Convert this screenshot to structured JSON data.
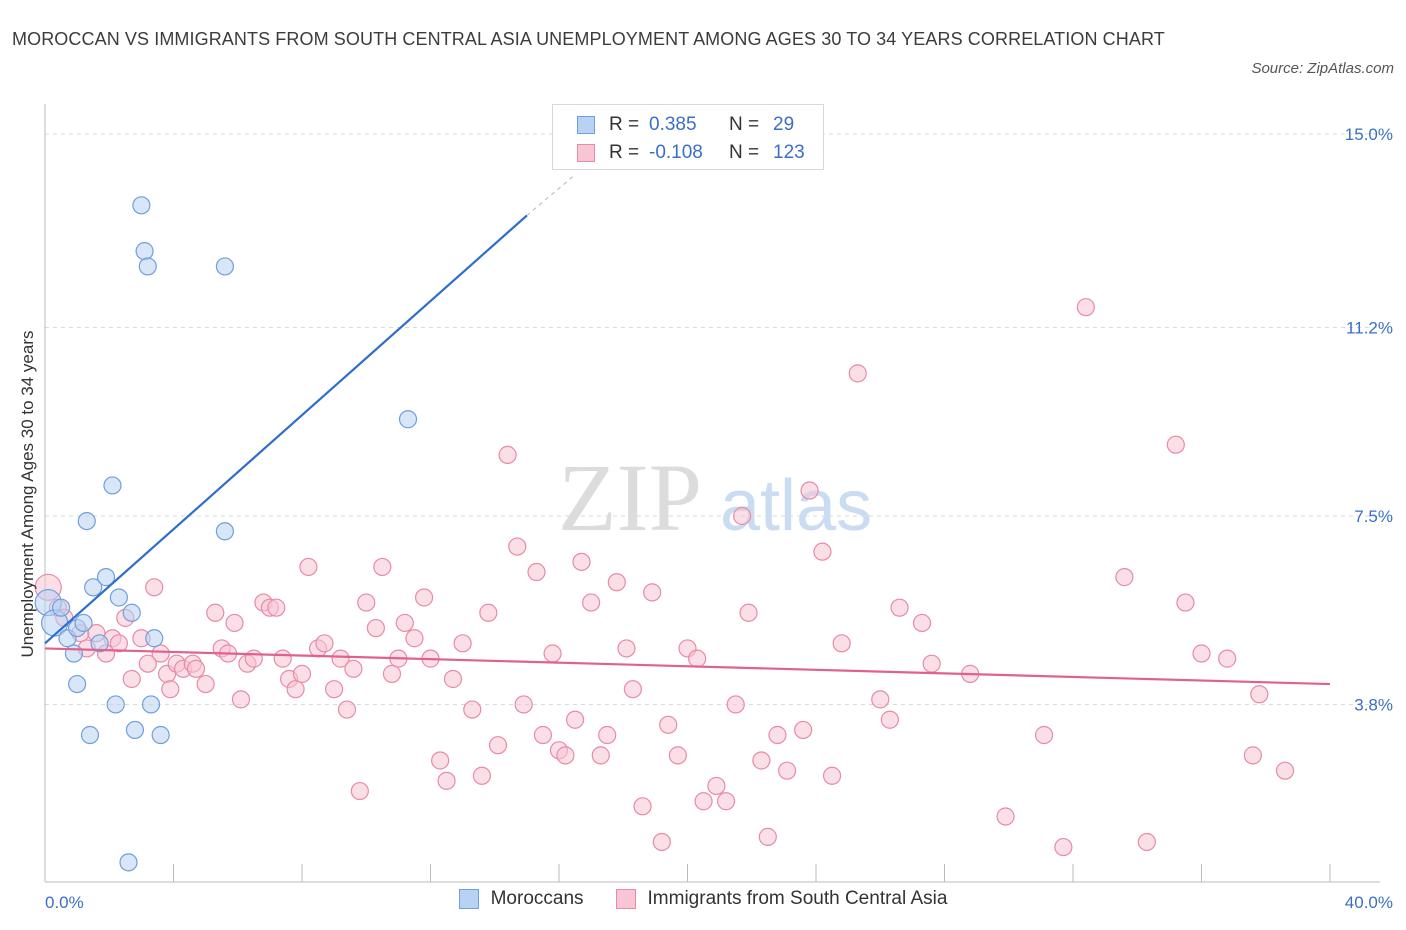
{
  "header": {
    "title": "MOROCCAN VS IMMIGRANTS FROM SOUTH CENTRAL ASIA UNEMPLOYMENT AMONG AGES 30 TO 34 YEARS CORRELATION CHART",
    "source": "Source: ZipAtlas.com"
  },
  "legend": {
    "rows": [
      {
        "r_label": "R =",
        "r_value": "0.385",
        "n_label": "N =",
        "n_value": "29"
      },
      {
        "r_label": "R =",
        "r_value": "-0.108",
        "n_label": "N =",
        "n_value": "123"
      }
    ],
    "bottom": [
      "Moroccans",
      "Immigrants from South Central Asia"
    ]
  },
  "colors": {
    "blue_fill": "#b8d2f3",
    "blue_stroke": "#6f9fdc",
    "blue_line": "#2f6fcc",
    "pink_fill": "#f7c5d4",
    "pink_stroke": "#e88aa8",
    "pink_line": "#e0618e",
    "grid": "#d9d9d9",
    "axis_text": "#3b6fc5"
  },
  "chart_data": {
    "type": "scatter",
    "title": "MOROCCAN VS IMMIGRANTS FROM SOUTH CENTRAL ASIA UNEMPLOYMENT AMONG AGES 30 TO 34 YEARS CORRELATION CHART",
    "xlabel": "",
    "ylabel": "Unemployment Among Ages 30 to 34 years",
    "xlim": [
      0,
      40
    ],
    "ylim": [
      0,
      15
    ],
    "x_tick_labels": [
      "0.0%",
      "40.0%"
    ],
    "y_ticks": [
      3.8,
      7.5,
      11.2,
      15.0
    ],
    "y_tick_labels": [
      "3.8%",
      "7.5%",
      "11.2%",
      "15.0%"
    ],
    "watermark": "ZIPatlas",
    "series": [
      {
        "name": "Moroccans",
        "r": 0.385,
        "n": 29,
        "trend": {
          "x": [
            0.0,
            15.0
          ],
          "y": [
            5.0,
            13.4
          ]
        },
        "trend_dashed": {
          "x": [
            15.0,
            16.5
          ],
          "y": [
            13.4,
            14.2
          ]
        },
        "points": [
          {
            "x": 0.1,
            "y": 5.8,
            "big": true
          },
          {
            "x": 0.3,
            "y": 5.4,
            "big": true
          },
          {
            "x": 0.5,
            "y": 5.7
          },
          {
            "x": 0.7,
            "y": 5.1
          },
          {
            "x": 0.9,
            "y": 4.8
          },
          {
            "x": 1.0,
            "y": 5.3
          },
          {
            "x": 1.0,
            "y": 4.2
          },
          {
            "x": 1.2,
            "y": 5.4
          },
          {
            "x": 1.3,
            "y": 7.4
          },
          {
            "x": 1.4,
            "y": 3.2
          },
          {
            "x": 1.5,
            "y": 6.1
          },
          {
            "x": 1.7,
            "y": 5.0
          },
          {
            "x": 1.9,
            "y": 6.3
          },
          {
            "x": 2.1,
            "y": 8.1
          },
          {
            "x": 2.2,
            "y": 3.8
          },
          {
            "x": 2.3,
            "y": 5.9
          },
          {
            "x": 2.6,
            "y": 0.7
          },
          {
            "x": 2.7,
            "y": 5.6
          },
          {
            "x": 2.8,
            "y": 3.3
          },
          {
            "x": 3.0,
            "y": 13.6
          },
          {
            "x": 3.1,
            "y": 12.7
          },
          {
            "x": 3.2,
            "y": 12.4
          },
          {
            "x": 3.3,
            "y": 3.8
          },
          {
            "x": 3.4,
            "y": 5.1
          },
          {
            "x": 3.6,
            "y": 3.2
          },
          {
            "x": 5.6,
            "y": 7.2
          },
          {
            "x": 5.6,
            "y": 12.4
          },
          {
            "x": 11.3,
            "y": 9.4
          }
        ]
      },
      {
        "name": "Immigrants from South Central Asia",
        "r": -0.108,
        "n": 123,
        "trend": {
          "x": [
            0.0,
            40.0
          ],
          "y": [
            4.9,
            4.2
          ]
        },
        "points": [
          {
            "x": 0.1,
            "y": 6.1,
            "big": true
          },
          {
            "x": 0.4,
            "y": 5.7
          },
          {
            "x": 0.6,
            "y": 5.5
          },
          {
            "x": 1.1,
            "y": 5.2
          },
          {
            "x": 1.3,
            "y": 4.9
          },
          {
            "x": 1.6,
            "y": 5.2
          },
          {
            "x": 1.9,
            "y": 4.8
          },
          {
            "x": 2.1,
            "y": 5.1
          },
          {
            "x": 2.3,
            "y": 5.0
          },
          {
            "x": 2.5,
            "y": 5.5
          },
          {
            "x": 2.7,
            "y": 4.3
          },
          {
            "x": 3.0,
            "y": 5.1
          },
          {
            "x": 3.2,
            "y": 4.6
          },
          {
            "x": 3.4,
            "y": 6.1
          },
          {
            "x": 3.6,
            "y": 4.8
          },
          {
            "x": 3.8,
            "y": 4.4
          },
          {
            "x": 3.9,
            "y": 4.1
          },
          {
            "x": 4.1,
            "y": 4.6
          },
          {
            "x": 4.3,
            "y": 4.5
          },
          {
            "x": 4.6,
            "y": 4.6
          },
          {
            "x": 4.7,
            "y": 4.5
          },
          {
            "x": 5.0,
            "y": 4.2
          },
          {
            "x": 5.3,
            "y": 5.6
          },
          {
            "x": 5.5,
            "y": 4.9
          },
          {
            "x": 5.7,
            "y": 4.8
          },
          {
            "x": 5.9,
            "y": 5.4
          },
          {
            "x": 6.1,
            "y": 3.9
          },
          {
            "x": 6.3,
            "y": 4.6
          },
          {
            "x": 6.5,
            "y": 4.7
          },
          {
            "x": 6.8,
            "y": 5.8
          },
          {
            "x": 7.0,
            "y": 5.7
          },
          {
            "x": 7.2,
            "y": 5.7
          },
          {
            "x": 7.4,
            "y": 4.7
          },
          {
            "x": 7.6,
            "y": 4.3
          },
          {
            "x": 7.8,
            "y": 4.1
          },
          {
            "x": 8.0,
            "y": 4.4
          },
          {
            "x": 8.2,
            "y": 6.5
          },
          {
            "x": 8.5,
            "y": 4.9
          },
          {
            "x": 8.7,
            "y": 5.0
          },
          {
            "x": 9.0,
            "y": 4.1
          },
          {
            "x": 9.2,
            "y": 4.7
          },
          {
            "x": 9.4,
            "y": 3.7
          },
          {
            "x": 9.6,
            "y": 4.5
          },
          {
            "x": 9.8,
            "y": 2.1
          },
          {
            "x": 10.0,
            "y": 5.8
          },
          {
            "x": 10.3,
            "y": 5.3
          },
          {
            "x": 10.5,
            "y": 6.5
          },
          {
            "x": 10.8,
            "y": 4.4
          },
          {
            "x": 11.0,
            "y": 4.7
          },
          {
            "x": 11.2,
            "y": 5.4
          },
          {
            "x": 11.5,
            "y": 5.1
          },
          {
            "x": 11.8,
            "y": 5.9
          },
          {
            "x": 12.0,
            "y": 4.7
          },
          {
            "x": 12.3,
            "y": 2.7
          },
          {
            "x": 12.5,
            "y": 2.3
          },
          {
            "x": 12.7,
            "y": 4.3
          },
          {
            "x": 13.0,
            "y": 5.0
          },
          {
            "x": 13.3,
            "y": 3.7
          },
          {
            "x": 13.6,
            "y": 2.4
          },
          {
            "x": 13.8,
            "y": 5.6
          },
          {
            "x": 14.1,
            "y": 3.0
          },
          {
            "x": 14.4,
            "y": 8.7
          },
          {
            "x": 14.7,
            "y": 6.9
          },
          {
            "x": 14.9,
            "y": 3.8
          },
          {
            "x": 15.3,
            "y": 6.4
          },
          {
            "x": 15.5,
            "y": 3.2
          },
          {
            "x": 15.8,
            "y": 4.8
          },
          {
            "x": 16.0,
            "y": 2.9
          },
          {
            "x": 16.2,
            "y": 2.8
          },
          {
            "x": 16.5,
            "y": 3.5
          },
          {
            "x": 16.7,
            "y": 6.6
          },
          {
            "x": 17.0,
            "y": 5.8
          },
          {
            "x": 17.3,
            "y": 2.8
          },
          {
            "x": 17.5,
            "y": 3.2
          },
          {
            "x": 17.8,
            "y": 6.2
          },
          {
            "x": 18.1,
            "y": 4.9
          },
          {
            "x": 18.3,
            "y": 4.1
          },
          {
            "x": 18.6,
            "y": 1.8
          },
          {
            "x": 18.9,
            "y": 6.0
          },
          {
            "x": 19.2,
            "y": 1.1
          },
          {
            "x": 19.4,
            "y": 3.4
          },
          {
            "x": 19.7,
            "y": 2.8
          },
          {
            "x": 20.0,
            "y": 4.9
          },
          {
            "x": 20.3,
            "y": 4.7
          },
          {
            "x": 20.5,
            "y": 1.9
          },
          {
            "x": 20.9,
            "y": 2.2
          },
          {
            "x": 21.2,
            "y": 1.9
          },
          {
            "x": 21.5,
            "y": 3.8
          },
          {
            "x": 21.7,
            "y": 7.5
          },
          {
            "x": 21.9,
            "y": 5.6
          },
          {
            "x": 22.3,
            "y": 2.7
          },
          {
            "x": 22.5,
            "y": 1.2
          },
          {
            "x": 22.8,
            "y": 3.2
          },
          {
            "x": 23.1,
            "y": 2.5
          },
          {
            "x": 23.6,
            "y": 3.3
          },
          {
            "x": 23.8,
            "y": 8.0
          },
          {
            "x": 24.2,
            "y": 6.8
          },
          {
            "x": 24.5,
            "y": 2.4
          },
          {
            "x": 24.8,
            "y": 5.0
          },
          {
            "x": 25.3,
            "y": 10.3
          },
          {
            "x": 26.0,
            "y": 3.9
          },
          {
            "x": 26.3,
            "y": 3.5
          },
          {
            "x": 26.6,
            "y": 5.7
          },
          {
            "x": 27.3,
            "y": 5.4
          },
          {
            "x": 27.6,
            "y": 4.6
          },
          {
            "x": 28.8,
            "y": 4.4
          },
          {
            "x": 29.9,
            "y": 1.6
          },
          {
            "x": 31.1,
            "y": 3.2
          },
          {
            "x": 31.7,
            "y": 1.0
          },
          {
            "x": 32.4,
            "y": 11.6
          },
          {
            "x": 33.6,
            "y": 6.3
          },
          {
            "x": 34.3,
            "y": 1.1
          },
          {
            "x": 35.2,
            "y": 8.9
          },
          {
            "x": 35.5,
            "y": 5.8
          },
          {
            "x": 36.0,
            "y": 4.8
          },
          {
            "x": 36.8,
            "y": 4.7
          },
          {
            "x": 37.6,
            "y": 2.8
          },
          {
            "x": 37.8,
            "y": 4.0
          },
          {
            "x": 38.6,
            "y": 2.5
          }
        ]
      }
    ]
  }
}
